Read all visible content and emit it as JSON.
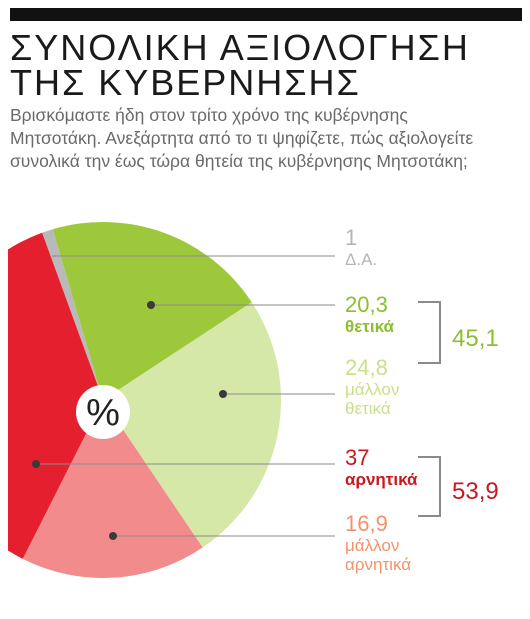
{
  "header": {
    "title_line1": "ΣΥΝΟΛΙΚΗ ΑΞΙΟΛΟΓΗΣΗ",
    "title_line2": "ΤΗΣ ΚΥΒΕΡΝΗΣΗΣ",
    "question": "Βρισκόμαστε ήδη στον τρίτο χρόνο της κυβέρνησης Μητσοτάκη. Ανεξάρτητα από το τι ψηφίζετε, πώς αξιολογείτε συνολικά την έως τώρα θητεία της κυβέρνησης Μητσοτάκη;"
  },
  "chart_data": {
    "type": "pie",
    "center_label": "%",
    "slices": [
      {
        "label": "Δ.Α.",
        "value": 1,
        "value_text": "1",
        "color": "#b9b9b9"
      },
      {
        "label": "θετικά",
        "value": 20.3,
        "value_text": "20,3",
        "color": "#9dc83c"
      },
      {
        "label": "μάλλον θετικά",
        "value": 24.8,
        "value_text": "24,8",
        "color": "#d6e8a8",
        "label_line1": "μάλλον",
        "label_line2": "θετικά"
      },
      {
        "label": "μάλλον αρνητικά",
        "value": 16.9,
        "value_text": "16,9",
        "color": "#f28c8c",
        "label_line1": "μάλλον",
        "label_line2": "αρνητικά"
      },
      {
        "label": "αρνητικά",
        "value": 37,
        "value_text": "37",
        "color": "#e5202e"
      }
    ],
    "groups": [
      {
        "name": "positive",
        "total": 45.1,
        "total_text": "45,1",
        "color": "#8cbf2f"
      },
      {
        "name": "negative",
        "total": 53.9,
        "total_text": "53,9",
        "color": "#c8191f"
      }
    ],
    "label_colors": {
      "da": "#b5b5b5",
      "positive": "#8cbf2f",
      "mostly_positive": "#c9e08a",
      "negative": "#c8191f",
      "mostly_negative": "#f2926a"
    }
  }
}
